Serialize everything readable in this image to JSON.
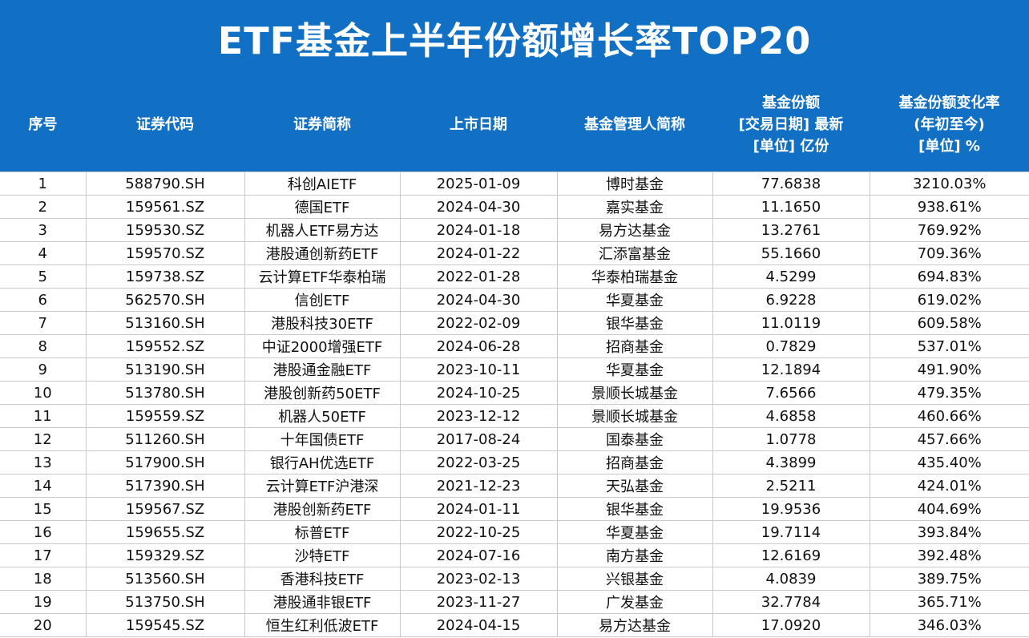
{
  "title": "ETF基金上半年份额增长率TOP20",
  "columns": [
    {
      "lines": [
        "序号"
      ]
    },
    {
      "lines": [
        "证券代码"
      ]
    },
    {
      "lines": [
        "证券简称"
      ]
    },
    {
      "lines": [
        "上市日期"
      ]
    },
    {
      "lines": [
        "基金管理人简称"
      ]
    },
    {
      "lines": [
        "基金份额",
        "[交易日期] 最新",
        "[单位] 亿份"
      ]
    },
    {
      "lines": [
        "基金份额变化率",
        "(年初至今)",
        "[单位] %"
      ]
    }
  ],
  "rows": [
    [
      "1",
      "588790.SH",
      "科创AIETF",
      "2025-01-09",
      "博时基金",
      "77.6838",
      "3210.03%"
    ],
    [
      "2",
      "159561.SZ",
      "德国ETF",
      "2024-04-30",
      "嘉实基金",
      "11.1650",
      "938.61%"
    ],
    [
      "3",
      "159530.SZ",
      "机器人ETF易方达",
      "2024-01-18",
      "易方达基金",
      "13.2761",
      "769.92%"
    ],
    [
      "4",
      "159570.SZ",
      "港股通创新药ETF",
      "2024-01-22",
      "汇添富基金",
      "55.1660",
      "709.36%"
    ],
    [
      "5",
      "159738.SZ",
      "云计算ETF华泰柏瑞",
      "2022-01-28",
      "华泰柏瑞基金",
      "4.5299",
      "694.83%"
    ],
    [
      "6",
      "562570.SH",
      "信创ETF",
      "2024-04-30",
      "华夏基金",
      "6.9228",
      "619.02%"
    ],
    [
      "7",
      "513160.SH",
      "港股科技30ETF",
      "2022-02-09",
      "银华基金",
      "11.0119",
      "609.58%"
    ],
    [
      "8",
      "159552.SZ",
      "中证2000增强ETF",
      "2024-06-28",
      "招商基金",
      "0.7829",
      "537.01%"
    ],
    [
      "9",
      "513190.SH",
      "港股通金融ETF",
      "2023-10-11",
      "华夏基金",
      "12.1894",
      "491.90%"
    ],
    [
      "10",
      "513780.SH",
      "港股创新药50ETF",
      "2024-10-25",
      "景顺长城基金",
      "7.6566",
      "479.35%"
    ],
    [
      "11",
      "159559.SZ",
      "机器人50ETF",
      "2023-12-12",
      "景顺长城基金",
      "4.6858",
      "460.66%"
    ],
    [
      "12",
      "511260.SH",
      "十年国债ETF",
      "2017-08-24",
      "国泰基金",
      "1.0778",
      "457.66%"
    ],
    [
      "13",
      "517900.SH",
      "银行AH优选ETF",
      "2022-03-25",
      "招商基金",
      "4.3899",
      "435.40%"
    ],
    [
      "14",
      "517390.SH",
      "云计算ETF沪港深",
      "2021-12-23",
      "天弘基金",
      "2.5211",
      "424.01%"
    ],
    [
      "15",
      "159567.SZ",
      "港股创新药ETF",
      "2024-01-11",
      "银华基金",
      "19.9536",
      "404.69%"
    ],
    [
      "16",
      "159655.SZ",
      "标普ETF",
      "2022-10-25",
      "华夏基金",
      "19.7114",
      "393.84%"
    ],
    [
      "17",
      "159329.SZ",
      "沙特ETF",
      "2024-07-16",
      "南方基金",
      "12.6169",
      "392.48%"
    ],
    [
      "18",
      "513560.SH",
      "香港科技ETF",
      "2023-02-13",
      "兴银基金",
      "4.0839",
      "389.75%"
    ],
    [
      "19",
      "513750.SH",
      "港股通非银ETF",
      "2023-11-27",
      "广发基金",
      "32.7784",
      "365.71%"
    ],
    [
      "20",
      "159545.SZ",
      "恒生红利低波ETF",
      "2024-04-15",
      "易方达基金",
      "17.0920",
      "346.03%"
    ]
  ],
  "colors": {
    "header_bg": "#1170c4",
    "header_text": "#ffffff",
    "grid": "#c9c9c9"
  }
}
